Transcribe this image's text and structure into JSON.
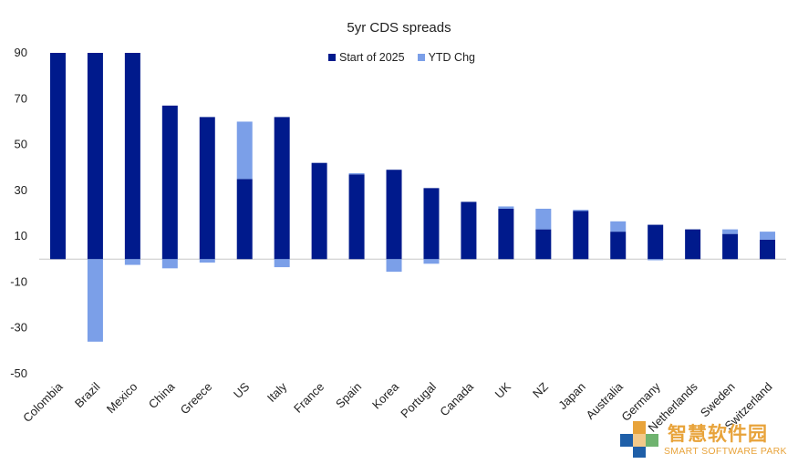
{
  "colors": {
    "start_series": "#001a8c",
    "ytd_series": "#7b9fe8",
    "axis_text": "#222222",
    "zero_line": "#c8c8c8",
    "watermark": "#e8a33a"
  },
  "watermark": {
    "chinese_text": "智慧软件园",
    "english_text": "SMART SOFTWARE PARK"
  },
  "chart_data": {
    "type": "bar",
    "title": "5yr CDS spreads",
    "stacked": true,
    "categories": [
      "Colombia",
      "Brazil",
      "Mexico",
      "China",
      "Greece",
      "US",
      "Italy",
      "France",
      "Spain",
      "Korea",
      "Portugal",
      "Canada",
      "UK",
      "NZ",
      "Japan",
      "Australia",
      "Germany",
      "Netherlands",
      "Sweden",
      "Switzerland"
    ],
    "series": [
      {
        "name": "Start of 2025",
        "values": [
          90,
          90,
          90,
          67,
          62,
          35,
          62,
          42,
          37,
          39,
          31,
          25,
          22,
          13,
          21,
          12,
          15,
          13,
          11,
          8.5
        ]
      },
      {
        "name": "YTD Chg",
        "values": [
          0,
          -36,
          -2.5,
          -4,
          -1.5,
          25,
          -3.5,
          0,
          0.5,
          -5.5,
          -2,
          0,
          1,
          9,
          0.5,
          4.5,
          -0.5,
          0,
          2,
          3.5
        ]
      }
    ],
    "ylim": [
      -50,
      90
    ],
    "yticks": [
      90,
      70,
      50,
      30,
      10,
      -10,
      -30,
      -50
    ],
    "xlabel": "",
    "ylabel": "",
    "legend_position": "top-center",
    "grid": false
  }
}
